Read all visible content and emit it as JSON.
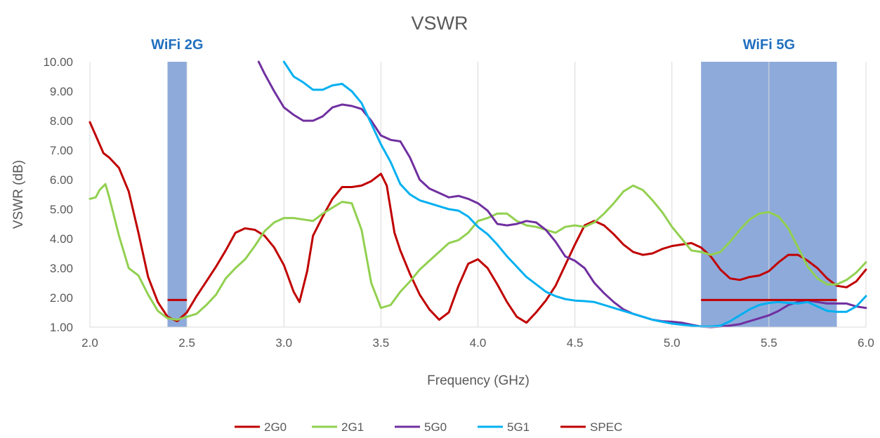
{
  "chart_data": {
    "type": "line",
    "title": "VSWR",
    "xlabel": "Frequency (GHz)",
    "ylabel": "VSWR (dB)",
    "xlim": [
      2.0,
      6.0
    ],
    "ylim": [
      1.0,
      10.0
    ],
    "x_ticks": [
      "2.0",
      "2.5",
      "3.0",
      "3.5",
      "4.0",
      "4.5",
      "5.0",
      "5.5",
      "6.0"
    ],
    "y_ticks": [
      "1.00",
      "2.00",
      "3.00",
      "4.00",
      "5.00",
      "6.00",
      "7.00",
      "8.00",
      "9.00",
      "10.00"
    ],
    "grid": "vertical",
    "legend_position": "bottom",
    "bands": [
      {
        "label": "WiFi 2G",
        "x_start": 2.4,
        "x_end": 2.5,
        "color": "#8eaadb"
      },
      {
        "label": "WiFi 5G",
        "x_start": 5.15,
        "x_end": 5.85,
        "color": "#8eaadb"
      }
    ],
    "series": [
      {
        "name": "2G0",
        "color": "#c00000",
        "points": [
          [
            2.0,
            7.95
          ],
          [
            2.03,
            7.5
          ],
          [
            2.07,
            6.9
          ],
          [
            2.1,
            6.75
          ],
          [
            2.15,
            6.4
          ],
          [
            2.2,
            5.6
          ],
          [
            2.25,
            4.2
          ],
          [
            2.3,
            2.7
          ],
          [
            2.35,
            1.85
          ],
          [
            2.4,
            1.35
          ],
          [
            2.45,
            1.2
          ],
          [
            2.5,
            1.5
          ],
          [
            2.55,
            2.05
          ],
          [
            2.6,
            2.55
          ],
          [
            2.65,
            3.05
          ],
          [
            2.7,
            3.6
          ],
          [
            2.75,
            4.2
          ],
          [
            2.8,
            4.35
          ],
          [
            2.85,
            4.3
          ],
          [
            2.9,
            4.1
          ],
          [
            2.95,
            3.7
          ],
          [
            3.0,
            3.1
          ],
          [
            3.05,
            2.2
          ],
          [
            3.08,
            1.85
          ],
          [
            3.12,
            2.9
          ],
          [
            3.15,
            4.1
          ],
          [
            3.2,
            4.75
          ],
          [
            3.25,
            5.35
          ],
          [
            3.3,
            5.75
          ],
          [
            3.35,
            5.75
          ],
          [
            3.4,
            5.8
          ],
          [
            3.45,
            5.95
          ],
          [
            3.5,
            6.2
          ],
          [
            3.53,
            5.8
          ],
          [
            3.57,
            4.2
          ],
          [
            3.6,
            3.6
          ],
          [
            3.65,
            2.8
          ],
          [
            3.7,
            2.1
          ],
          [
            3.75,
            1.6
          ],
          [
            3.8,
            1.25
          ],
          [
            3.85,
            1.5
          ],
          [
            3.9,
            2.4
          ],
          [
            3.95,
            3.15
          ],
          [
            4.0,
            3.3
          ],
          [
            4.05,
            3.0
          ],
          [
            4.1,
            2.45
          ],
          [
            4.15,
            1.85
          ],
          [
            4.2,
            1.35
          ],
          [
            4.25,
            1.15
          ],
          [
            4.3,
            1.5
          ],
          [
            4.35,
            1.9
          ],
          [
            4.4,
            2.4
          ],
          [
            4.45,
            3.1
          ],
          [
            4.5,
            3.8
          ],
          [
            4.55,
            4.45
          ],
          [
            4.6,
            4.6
          ],
          [
            4.65,
            4.45
          ],
          [
            4.7,
            4.15
          ],
          [
            4.75,
            3.8
          ],
          [
            4.8,
            3.55
          ],
          [
            4.85,
            3.45
          ],
          [
            4.9,
            3.5
          ],
          [
            4.95,
            3.65
          ],
          [
            5.0,
            3.75
          ],
          [
            5.05,
            3.8
          ],
          [
            5.1,
            3.85
          ],
          [
            5.15,
            3.7
          ],
          [
            5.2,
            3.4
          ],
          [
            5.25,
            2.95
          ],
          [
            5.3,
            2.65
          ],
          [
            5.35,
            2.6
          ],
          [
            5.4,
            2.7
          ],
          [
            5.45,
            2.75
          ],
          [
            5.5,
            2.9
          ],
          [
            5.55,
            3.2
          ],
          [
            5.6,
            3.45
          ],
          [
            5.65,
            3.45
          ],
          [
            5.7,
            3.25
          ],
          [
            5.75,
            3.0
          ],
          [
            5.8,
            2.65
          ],
          [
            5.85,
            2.4
          ],
          [
            5.9,
            2.35
          ],
          [
            5.95,
            2.55
          ],
          [
            6.0,
            2.95
          ]
        ]
      },
      {
        "name": "2G1",
        "color": "#92d050",
        "points": [
          [
            2.0,
            5.35
          ],
          [
            2.03,
            5.4
          ],
          [
            2.05,
            5.65
          ],
          [
            2.08,
            5.85
          ],
          [
            2.1,
            5.4
          ],
          [
            2.15,
            4.1
          ],
          [
            2.2,
            3.0
          ],
          [
            2.25,
            2.75
          ],
          [
            2.3,
            2.1
          ],
          [
            2.35,
            1.55
          ],
          [
            2.4,
            1.3
          ],
          [
            2.45,
            1.25
          ],
          [
            2.5,
            1.35
          ],
          [
            2.55,
            1.45
          ],
          [
            2.6,
            1.75
          ],
          [
            2.65,
            2.1
          ],
          [
            2.7,
            2.65
          ],
          [
            2.75,
            3.0
          ],
          [
            2.8,
            3.3
          ],
          [
            2.85,
            3.75
          ],
          [
            2.9,
            4.25
          ],
          [
            2.95,
            4.55
          ],
          [
            3.0,
            4.7
          ],
          [
            3.05,
            4.7
          ],
          [
            3.1,
            4.65
          ],
          [
            3.15,
            4.6
          ],
          [
            3.2,
            4.85
          ],
          [
            3.25,
            5.05
          ],
          [
            3.3,
            5.25
          ],
          [
            3.35,
            5.2
          ],
          [
            3.4,
            4.3
          ],
          [
            3.45,
            2.5
          ],
          [
            3.5,
            1.65
          ],
          [
            3.55,
            1.75
          ],
          [
            3.6,
            2.2
          ],
          [
            3.65,
            2.55
          ],
          [
            3.7,
            2.95
          ],
          [
            3.75,
            3.25
          ],
          [
            3.8,
            3.55
          ],
          [
            3.85,
            3.85
          ],
          [
            3.9,
            3.95
          ],
          [
            3.95,
            4.2
          ],
          [
            4.0,
            4.6
          ],
          [
            4.05,
            4.7
          ],
          [
            4.1,
            4.85
          ],
          [
            4.15,
            4.85
          ],
          [
            4.2,
            4.6
          ],
          [
            4.25,
            4.45
          ],
          [
            4.3,
            4.4
          ],
          [
            4.35,
            4.3
          ],
          [
            4.4,
            4.2
          ],
          [
            4.45,
            4.4
          ],
          [
            4.5,
            4.45
          ],
          [
            4.55,
            4.4
          ],
          [
            4.6,
            4.55
          ],
          [
            4.65,
            4.85
          ],
          [
            4.7,
            5.2
          ],
          [
            4.75,
            5.6
          ],
          [
            4.8,
            5.8
          ],
          [
            4.85,
            5.65
          ],
          [
            4.9,
            5.3
          ],
          [
            4.95,
            4.9
          ],
          [
            5.0,
            4.4
          ],
          [
            5.05,
            4.0
          ],
          [
            5.1,
            3.6
          ],
          [
            5.15,
            3.55
          ],
          [
            5.2,
            3.45
          ],
          [
            5.25,
            3.55
          ],
          [
            5.3,
            3.9
          ],
          [
            5.35,
            4.3
          ],
          [
            5.4,
            4.65
          ],
          [
            5.45,
            4.85
          ],
          [
            5.5,
            4.9
          ],
          [
            5.55,
            4.75
          ],
          [
            5.6,
            4.35
          ],
          [
            5.65,
            3.7
          ],
          [
            5.7,
            3.05
          ],
          [
            5.75,
            2.65
          ],
          [
            5.8,
            2.45
          ],
          [
            5.85,
            2.45
          ],
          [
            5.9,
            2.6
          ],
          [
            5.95,
            2.85
          ],
          [
            6.0,
            3.2
          ]
        ]
      },
      {
        "name": "5G0",
        "color": "#7030a0",
        "points": [
          [
            2.87,
            10.0
          ],
          [
            2.9,
            9.6
          ],
          [
            2.95,
            9.0
          ],
          [
            3.0,
            8.45
          ],
          [
            3.05,
            8.2
          ],
          [
            3.1,
            8.0
          ],
          [
            3.15,
            8.0
          ],
          [
            3.2,
            8.15
          ],
          [
            3.25,
            8.45
          ],
          [
            3.3,
            8.55
          ],
          [
            3.35,
            8.5
          ],
          [
            3.4,
            8.4
          ],
          [
            3.45,
            8.0
          ],
          [
            3.5,
            7.5
          ],
          [
            3.55,
            7.35
          ],
          [
            3.6,
            7.3
          ],
          [
            3.65,
            6.75
          ],
          [
            3.7,
            6.0
          ],
          [
            3.75,
            5.7
          ],
          [
            3.8,
            5.55
          ],
          [
            3.85,
            5.4
          ],
          [
            3.9,
            5.45
          ],
          [
            3.95,
            5.35
          ],
          [
            4.0,
            5.2
          ],
          [
            4.05,
            4.95
          ],
          [
            4.1,
            4.5
          ],
          [
            4.15,
            4.45
          ],
          [
            4.2,
            4.5
          ],
          [
            4.25,
            4.6
          ],
          [
            4.3,
            4.55
          ],
          [
            4.35,
            4.3
          ],
          [
            4.4,
            3.9
          ],
          [
            4.45,
            3.4
          ],
          [
            4.5,
            3.25
          ],
          [
            4.55,
            3.0
          ],
          [
            4.6,
            2.5
          ],
          [
            4.65,
            2.15
          ],
          [
            4.7,
            1.85
          ],
          [
            4.75,
            1.6
          ],
          [
            4.8,
            1.45
          ],
          [
            4.85,
            1.35
          ],
          [
            4.9,
            1.25
          ],
          [
            4.95,
            1.2
          ],
          [
            5.0,
            1.18
          ],
          [
            5.05,
            1.15
          ],
          [
            5.1,
            1.08
          ],
          [
            5.15,
            1.02
          ],
          [
            5.2,
            1.0
          ],
          [
            5.25,
            1.02
          ],
          [
            5.3,
            1.05
          ],
          [
            5.35,
            1.1
          ],
          [
            5.4,
            1.2
          ],
          [
            5.45,
            1.3
          ],
          [
            5.5,
            1.4
          ],
          [
            5.55,
            1.55
          ],
          [
            5.6,
            1.75
          ],
          [
            5.65,
            1.85
          ],
          [
            5.7,
            1.9
          ],
          [
            5.75,
            1.85
          ],
          [
            5.8,
            1.8
          ],
          [
            5.85,
            1.8
          ],
          [
            5.9,
            1.8
          ],
          [
            5.95,
            1.7
          ],
          [
            6.0,
            1.65
          ]
        ]
      },
      {
        "name": "5G1",
        "color": "#00b0f0",
        "points": [
          [
            3.0,
            10.0
          ],
          [
            3.05,
            9.5
          ],
          [
            3.1,
            9.3
          ],
          [
            3.15,
            9.05
          ],
          [
            3.2,
            9.05
          ],
          [
            3.25,
            9.2
          ],
          [
            3.3,
            9.25
          ],
          [
            3.35,
            9.0
          ],
          [
            3.4,
            8.6
          ],
          [
            3.45,
            7.9
          ],
          [
            3.5,
            7.2
          ],
          [
            3.55,
            6.6
          ],
          [
            3.6,
            5.85
          ],
          [
            3.65,
            5.5
          ],
          [
            3.7,
            5.3
          ],
          [
            3.75,
            5.2
          ],
          [
            3.8,
            5.1
          ],
          [
            3.85,
            5.0
          ],
          [
            3.9,
            4.95
          ],
          [
            3.95,
            4.75
          ],
          [
            4.0,
            4.4
          ],
          [
            4.05,
            4.15
          ],
          [
            4.1,
            3.8
          ],
          [
            4.15,
            3.4
          ],
          [
            4.2,
            3.05
          ],
          [
            4.25,
            2.7
          ],
          [
            4.3,
            2.45
          ],
          [
            4.35,
            2.2
          ],
          [
            4.4,
            2.05
          ],
          [
            4.45,
            1.95
          ],
          [
            4.5,
            1.9
          ],
          [
            4.55,
            1.88
          ],
          [
            4.6,
            1.85
          ],
          [
            4.65,
            1.75
          ],
          [
            4.7,
            1.65
          ],
          [
            4.75,
            1.55
          ],
          [
            4.8,
            1.45
          ],
          [
            4.85,
            1.35
          ],
          [
            4.9,
            1.25
          ],
          [
            4.95,
            1.18
          ],
          [
            5.0,
            1.12
          ],
          [
            5.05,
            1.08
          ],
          [
            5.1,
            1.05
          ],
          [
            5.15,
            1.02
          ],
          [
            5.2,
            1.02
          ],
          [
            5.25,
            1.05
          ],
          [
            5.3,
            1.2
          ],
          [
            5.35,
            1.4
          ],
          [
            5.4,
            1.6
          ],
          [
            5.45,
            1.75
          ],
          [
            5.5,
            1.82
          ],
          [
            5.55,
            1.85
          ],
          [
            5.6,
            1.82
          ],
          [
            5.65,
            1.8
          ],
          [
            5.7,
            1.85
          ],
          [
            5.75,
            1.7
          ],
          [
            5.8,
            1.55
          ],
          [
            5.85,
            1.52
          ],
          [
            5.9,
            1.52
          ],
          [
            5.95,
            1.7
          ],
          [
            6.0,
            2.05
          ]
        ]
      },
      {
        "name": "SPEC",
        "color": "#c00000",
        "segments": [
          [
            [
              2.4,
              1.92
            ],
            [
              2.5,
              1.92
            ]
          ],
          [
            [
              5.15,
              1.92
            ],
            [
              5.85,
              1.92
            ]
          ]
        ]
      }
    ]
  }
}
